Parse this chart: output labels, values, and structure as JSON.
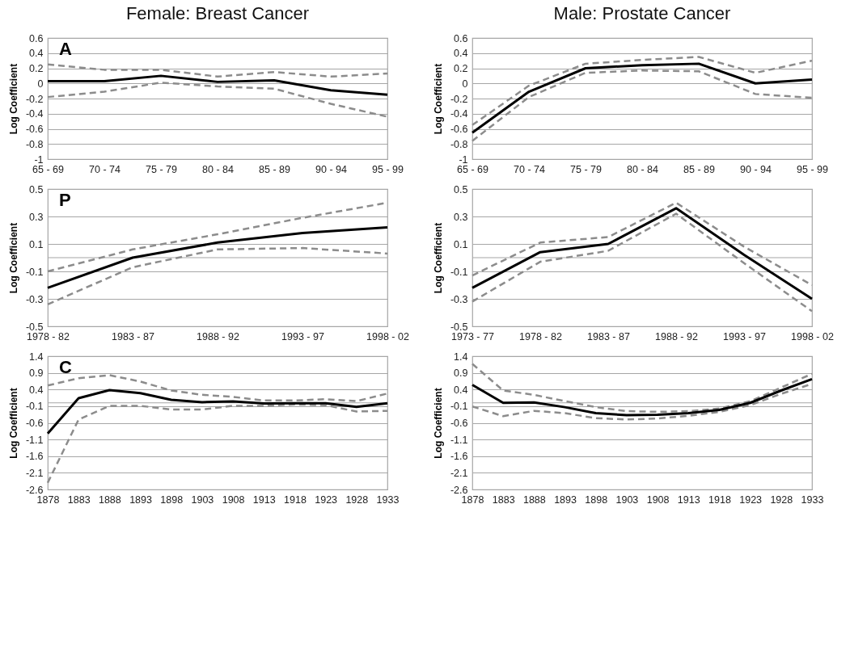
{
  "chart_data": [
    {
      "type": "line",
      "title": "Female: Breast Cancer",
      "ylabel": "Log Coefficient",
      "annotations": [
        "A"
      ],
      "categories": [
        "65 - 69",
        "70 - 74",
        "75 - 79",
        "80 - 84",
        "85 - 89",
        "90 - 94",
        "95 - 99"
      ],
      "ylim": [
        -1,
        0.6
      ],
      "yticks": [
        -1,
        -0.8,
        -0.6,
        -0.4,
        -0.2,
        0,
        0.2,
        0.4,
        0.6
      ],
      "grid": true,
      "series": [
        {
          "color": "#8c8c8c",
          "line_style": "dashed",
          "values": [
            0.25,
            0.18,
            0.18,
            0.09,
            0.15,
            0.09,
            0.13
          ]
        },
        {
          "color": "#8c8c8c",
          "line_style": "dashed",
          "values": [
            -0.18,
            -0.11,
            0.01,
            -0.04,
            -0.07,
            -0.27,
            -0.44
          ]
        },
        {
          "color": "#000000",
          "line_style": "solid",
          "values": [
            0.03,
            0.03,
            0.1,
            0.02,
            0.04,
            -0.09,
            -0.15
          ]
        }
      ]
    },
    {
      "type": "line",
      "title": "Male: Prostate Cancer",
      "ylabel": "Log Coefficient",
      "categories": [
        "65 - 69",
        "70 - 74",
        "75 - 79",
        "80 - 84",
        "85 - 89",
        "90 - 94",
        "95 - 99"
      ],
      "ylim": [
        -1,
        0.6
      ],
      "yticks": [
        -1,
        -0.8,
        -0.6,
        -0.4,
        -0.2,
        0,
        0.2,
        0.4,
        0.6
      ],
      "grid": true,
      "series": [
        {
          "color": "#8c8c8c",
          "line_style": "dashed",
          "values": [
            -0.55,
            -0.03,
            0.26,
            0.31,
            0.35,
            0.14,
            0.3
          ]
        },
        {
          "color": "#8c8c8c",
          "line_style": "dashed",
          "values": [
            -0.76,
            -0.18,
            0.14,
            0.17,
            0.16,
            -0.14,
            -0.19
          ]
        },
        {
          "color": "#000000",
          "line_style": "solid",
          "values": [
            -0.65,
            -0.11,
            0.2,
            0.24,
            0.26,
            0.0,
            0.05
          ]
        }
      ]
    },
    {
      "type": "line",
      "ylabel": "Log Coefficient",
      "annotations": [
        "P"
      ],
      "categories": [
        "1978 - 82",
        "1983 - 87",
        "1988 - 92",
        "1993 - 97",
        "1998 - 02"
      ],
      "ylim": [
        -0.5,
        0.5
      ],
      "yticks": [
        -0.5,
        -0.3,
        -0.1,
        0.1,
        0.3,
        0.5
      ],
      "grid": true,
      "ref_lines": [
        {
          "axis": "y",
          "value": 0,
          "color": "#a6a6a6"
        }
      ],
      "series": [
        {
          "color": "#8c8c8c",
          "line_style": "dashed",
          "values": [
            -0.1,
            0.06,
            0.17,
            0.29,
            0.4
          ]
        },
        {
          "color": "#8c8c8c",
          "line_style": "dashed",
          "values": [
            -0.34,
            -0.07,
            0.06,
            0.07,
            0.03
          ]
        },
        {
          "color": "#000000",
          "line_style": "solid",
          "values": [
            -0.22,
            0.0,
            0.11,
            0.18,
            0.22
          ]
        }
      ]
    },
    {
      "type": "line",
      "ylabel": "Log Coefficient",
      "categories": [
        "1973 - 77",
        "1978 - 82",
        "1983 - 87",
        "1988 - 92",
        "1993 - 97",
        "1998 - 02"
      ],
      "ylim": [
        -0.5,
        0.5
      ],
      "yticks": [
        -0.5,
        -0.3,
        -0.1,
        0.1,
        0.3,
        0.5
      ],
      "grid": true,
      "ref_lines": [
        {
          "axis": "y",
          "value": 0,
          "color": "#a6a6a6"
        }
      ],
      "series": [
        {
          "color": "#8c8c8c",
          "line_style": "dashed",
          "values": [
            -0.13,
            0.11,
            0.15,
            0.4,
            0.08,
            -0.2
          ]
        },
        {
          "color": "#8c8c8c",
          "line_style": "dashed",
          "values": [
            -0.32,
            -0.03,
            0.05,
            0.32,
            -0.04,
            -0.39
          ]
        },
        {
          "color": "#000000",
          "line_style": "solid",
          "values": [
            -0.22,
            0.04,
            0.1,
            0.36,
            0.02,
            -0.3
          ]
        }
      ]
    },
    {
      "type": "line",
      "ylabel": "Log Coefficient",
      "annotations": [
        "C"
      ],
      "categories": [
        "1878",
        "1883",
        "1888",
        "1893",
        "1898",
        "1903",
        "1908",
        "1913",
        "1918",
        "1923",
        "1928",
        "1933"
      ],
      "ylim": [
        -2.6,
        1.4
      ],
      "yticks": [
        -2.6,
        -2.1,
        -1.6,
        -1.1,
        -0.6,
        -0.1,
        0.4,
        0.9,
        1.4
      ],
      "grid": true,
      "ref_lines": [
        {
          "axis": "y",
          "value": 0,
          "color": "#a6a6a6"
        }
      ],
      "series": [
        {
          "color": "#8c8c8c",
          "line_style": "dashed",
          "values": [
            0.52,
            0.74,
            0.83,
            0.64,
            0.37,
            0.24,
            0.18,
            0.07,
            0.07,
            0.11,
            0.05,
            0.28
          ]
        },
        {
          "color": "#8c8c8c",
          "line_style": "dashed",
          "values": [
            -2.4,
            -0.5,
            -0.09,
            -0.09,
            -0.2,
            -0.2,
            -0.09,
            -0.09,
            -0.05,
            -0.07,
            -0.26,
            -0.24
          ]
        },
        {
          "color": "#000000",
          "line_style": "solid",
          "values": [
            -0.92,
            0.14,
            0.38,
            0.29,
            0.09,
            0.02,
            0.04,
            -0.02,
            -0.01,
            -0.01,
            -0.12,
            -0.01
          ]
        }
      ]
    },
    {
      "type": "line",
      "ylabel": "Log Coefficient",
      "categories": [
        "1878",
        "1883",
        "1888",
        "1893",
        "1898",
        "1903",
        "1908",
        "1913",
        "1918",
        "1923",
        "1928",
        "1933"
      ],
      "ylim": [
        -2.6,
        1.4
      ],
      "yticks": [
        -2.6,
        -2.1,
        -1.6,
        -1.1,
        -0.6,
        -0.1,
        0.4,
        0.9,
        1.4
      ],
      "grid": true,
      "ref_lines": [
        {
          "axis": "y",
          "value": 0,
          "color": "#a6a6a6"
        }
      ],
      "series": [
        {
          "color": "#8c8c8c",
          "line_style": "dashed",
          "values": [
            1.17,
            0.37,
            0.24,
            0.05,
            -0.13,
            -0.25,
            -0.27,
            -0.25,
            -0.17,
            0.05,
            0.46,
            0.87
          ]
        },
        {
          "color": "#8c8c8c",
          "line_style": "dashed",
          "values": [
            -0.11,
            -0.4,
            -0.24,
            -0.31,
            -0.46,
            -0.5,
            -0.47,
            -0.39,
            -0.27,
            -0.07,
            0.27,
            0.57
          ]
        },
        {
          "color": "#000000",
          "line_style": "solid",
          "values": [
            0.54,
            0.0,
            0.01,
            -0.13,
            -0.31,
            -0.37,
            -0.36,
            -0.31,
            -0.21,
            0.0,
            0.37,
            0.71
          ]
        }
      ]
    }
  ]
}
